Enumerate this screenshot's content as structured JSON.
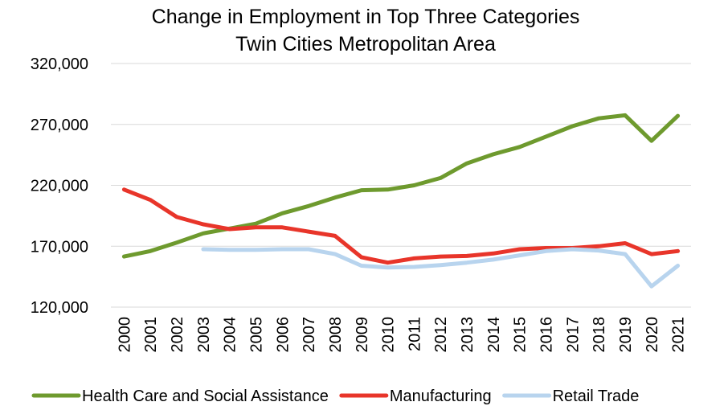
{
  "chart_data": {
    "type": "line",
    "title": "Change in Employment in Top Three Categories",
    "subtitle": "Twin Cities Metropolitan Area",
    "xlabel": "",
    "ylabel": "",
    "ylim": [
      120000,
      320000
    ],
    "yticks": [
      120000,
      170000,
      220000,
      270000,
      320000
    ],
    "ytick_labels": [
      "120,000",
      "170,000",
      "220,000",
      "270,000",
      "320,000"
    ],
    "grid": true,
    "legend_position": "bottom",
    "x": [
      "2000",
      "2001",
      "2002",
      "2003",
      "2004",
      "2005",
      "2006",
      "2007",
      "2008",
      "2009",
      "2010",
      "2011",
      "2012",
      "2013",
      "2014",
      "2015",
      "2016",
      "2017",
      "2018",
      "2019",
      "2020",
      "2021"
    ],
    "series": [
      {
        "name": "Health Care and Social Assistance",
        "color": "#6e9a2e",
        "values": [
          161500,
          166000,
          173000,
          180500,
          184500,
          188500,
          197000,
          203000,
          210000,
          216000,
          216500,
          220000,
          226000,
          238000,
          245500,
          251500,
          260000,
          268500,
          275000,
          277500,
          256500,
          277000
        ]
      },
      {
        "name": "Manufacturing",
        "color": "#e8352a",
        "values": [
          216500,
          208000,
          194000,
          188000,
          184000,
          185500,
          185500,
          182000,
          178500,
          161000,
          156500,
          160000,
          161500,
          162000,
          164000,
          167500,
          168500,
          168500,
          170000,
          172500,
          163500,
          166000
        ]
      },
      {
        "name": "Retail Trade",
        "color": "#b8d4ee",
        "values": [
          null,
          null,
          null,
          167500,
          167000,
          167000,
          167500,
          167500,
          163500,
          154000,
          152500,
          153000,
          154500,
          156500,
          159000,
          162500,
          166000,
          167500,
          166500,
          163500,
          137000,
          154000
        ]
      }
    ]
  }
}
